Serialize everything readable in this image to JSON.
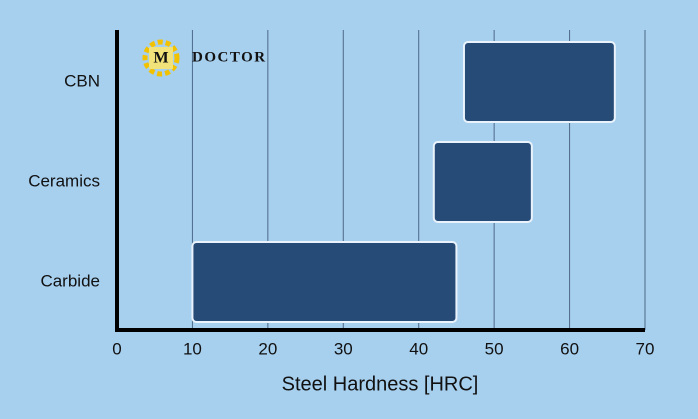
{
  "chart_data": {
    "type": "range-bar",
    "xlabel": "Steel Hardness [HRC]",
    "categories": [
      "CBN",
      "Ceramics",
      "Carbide"
    ],
    "values": [
      [
        46,
        66
      ],
      [
        42,
        55
      ],
      [
        10,
        45
      ]
    ],
    "color": "#264b77",
    "xlim": [
      0,
      70
    ],
    "xticks": [
      0,
      10,
      20,
      30,
      40,
      50,
      60,
      70
    ],
    "grid": true,
    "logo": {
      "initial": "M",
      "text": "DOCTOR"
    }
  }
}
